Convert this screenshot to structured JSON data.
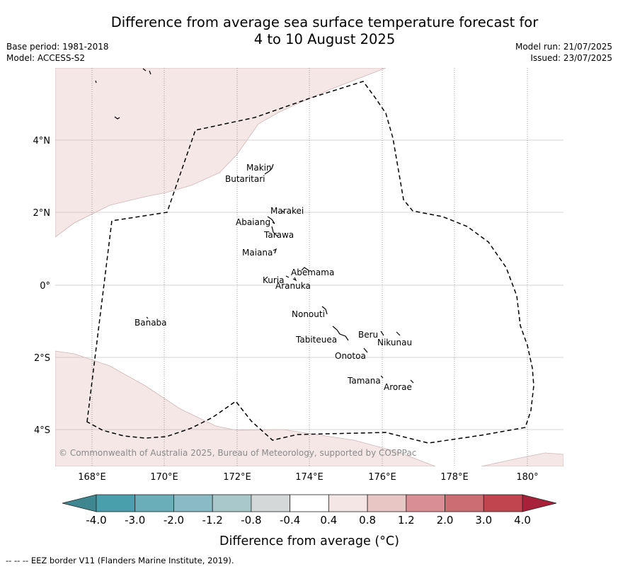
{
  "title": {
    "line1": "Difference from average sea surface temperature forecast for",
    "line2": "4 to 10 August 2025"
  },
  "meta_left": {
    "base_period": "Base period: 1981-2018",
    "model": "Model: ACCESS-S2"
  },
  "meta_right": {
    "model_run": "Model run: 21/07/2025",
    "issued": "Issued: 23/07/2025"
  },
  "map": {
    "lon_ticks": [
      "168°E",
      "170°E",
      "172°E",
      "174°E",
      "176°E",
      "178°E",
      "180°"
    ],
    "lat_ticks": [
      "4°N",
      "2°N",
      "0°",
      "2°S",
      "4°S"
    ],
    "copyright": "© Commonwealth of Australia 2025, Bureau of Meteorology, supported by COSPPac",
    "place_labels": [
      "Makin",
      "Butaritari",
      "Marakei",
      "Abaiang",
      "Tarawa",
      "Maiana",
      "Abemama",
      "Kuria",
      "Aranuka",
      "Nonouti",
      "Banaba",
      "Beru",
      "Nikunau",
      "Tabiteuea",
      "Onotoa",
      "Tamana",
      "Arorae"
    ]
  },
  "colorbar": {
    "tick_labels": [
      "-4.0",
      "-3.0",
      "-2.0",
      "-1.2",
      "-0.8",
      "-0.4",
      "0.4",
      "0.8",
      "1.2",
      "2.0",
      "3.0",
      "4.0"
    ],
    "colors": [
      "#4a9fad",
      "#6aaeb9",
      "#8abac3",
      "#a9c8cc",
      "#d5d8d9",
      "#ffffff",
      "#f4e6e5",
      "#e8c6c4",
      "#d98e95",
      "#cc6c73",
      "#c0454f"
    ],
    "under_color": "#3e8791",
    "over_color": "#a8213a",
    "label": "Difference from average (°C)"
  },
  "footnote": "--  --  -- EEZ border V11 (Flanders Marine Institute, 2019)."
}
